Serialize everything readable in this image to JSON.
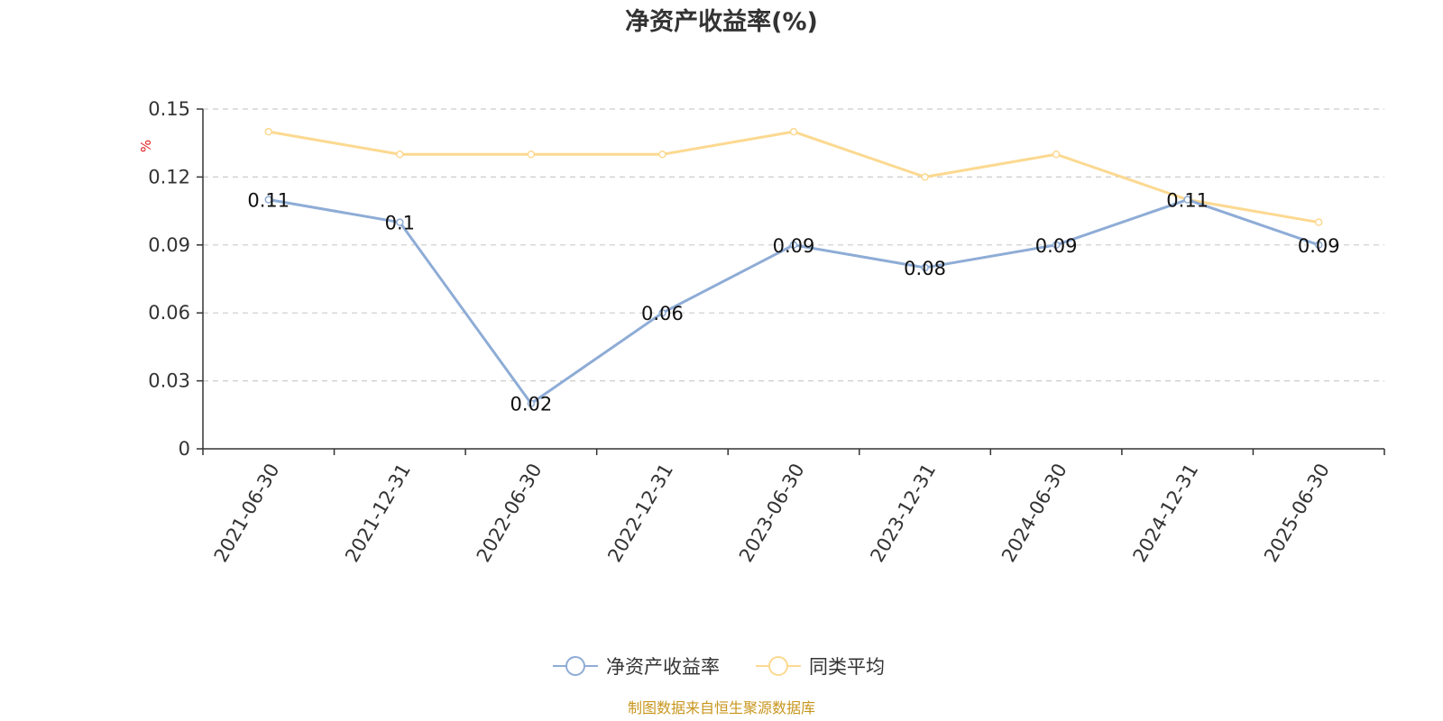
{
  "chart_data": {
    "type": "line",
    "title": "净资产收益率(%)",
    "ylabel": "%",
    "xlabel": "",
    "categories": [
      "2021-06-30",
      "2021-12-31",
      "2022-06-30",
      "2022-12-31",
      "2023-06-30",
      "2023-12-31",
      "2024-06-30",
      "2024-12-31",
      "2025-06-30"
    ],
    "series": [
      {
        "name": "净资产收益率",
        "color": "#8eacd6",
        "values": [
          0.11,
          0.1,
          0.02,
          0.06,
          0.09,
          0.08,
          0.09,
          0.11,
          0.09
        ],
        "labels": [
          "0.11",
          "0.1",
          "0.02",
          "0.06",
          "0.09",
          "0.08",
          "0.09",
          "0.11",
          "0.09"
        ]
      },
      {
        "name": "同类平均",
        "color": "#fcd991",
        "values": [
          0.14,
          0.13,
          0.13,
          0.13,
          0.14,
          0.12,
          0.13,
          0.11,
          0.1
        ]
      }
    ],
    "ylim": [
      0,
      0.15
    ],
    "yticks": [
      0,
      0.03,
      0.06,
      0.09,
      0.12,
      0.15
    ],
    "ytick_labels": [
      "0",
      "0.03",
      "0.06",
      "0.09",
      "0.12",
      "0.15"
    ],
    "grid": true,
    "legend_position": "bottom-center",
    "ylabel_color": "#e02020"
  },
  "source_text": "制图数据来自恒生聚源数据库",
  "source_color": "#c8961e"
}
